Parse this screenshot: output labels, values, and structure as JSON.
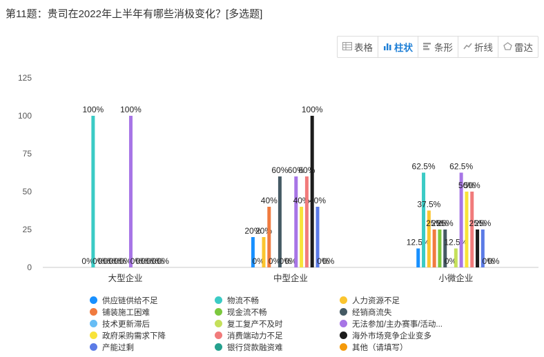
{
  "question": {
    "title": "第11题：贵司在2022年上半年有哪些消极变化？[多选题]"
  },
  "toolbar": {
    "buttons": [
      {
        "label": "表格",
        "icon": "table-icon",
        "active": false
      },
      {
        "label": "柱状",
        "icon": "bar-chart-icon",
        "active": true
      },
      {
        "label": "条形",
        "icon": "horizontal-bar-icon",
        "active": false
      },
      {
        "label": "折线",
        "icon": "line-chart-icon",
        "active": false
      },
      {
        "label": "雷达",
        "icon": "radar-icon",
        "active": false
      }
    ]
  },
  "chart_data": {
    "type": "bar",
    "title": "",
    "xlabel": "",
    "ylabel": "",
    "ylim": [
      0,
      125
    ],
    "yticks": [
      0,
      25,
      50,
      75,
      100,
      125
    ],
    "grid": false,
    "legend_position": "bottom",
    "categories": [
      "大型企业",
      "中型企业",
      "小微企业"
    ],
    "series": [
      {
        "name": "供应链供给不足",
        "color": "#1890ff",
        "values": [
          0,
          20,
          12.5
        ],
        "labels": [
          "0%",
          "20%",
          "12.5%"
        ]
      },
      {
        "name": "物流不畅",
        "color": "#3bcbc5",
        "values": [
          100,
          0,
          62.5
        ],
        "labels": [
          "100%",
          "0%",
          "62.5%"
        ]
      },
      {
        "name": "人力资源不足",
        "color": "#fbc52f",
        "values": [
          0,
          20,
          37.5
        ],
        "labels": [
          "0%",
          "20%",
          "37.5%"
        ]
      },
      {
        "name": "铺装施工困难",
        "color": "#f07b3f",
        "values": [
          0,
          40,
          25
        ],
        "labels": [
          "0%",
          "40%",
          "25%"
        ]
      },
      {
        "name": "现金流不畅",
        "color": "#7cc83e",
        "values": [
          0,
          0,
          25
        ],
        "labels": [
          "0%",
          "0%",
          "25%"
        ]
      },
      {
        "name": "经销商流失",
        "color": "#455a64",
        "values": [
          0,
          60,
          25
        ],
        "labels": [
          "0%",
          "60%",
          "25%"
        ]
      },
      {
        "name": "技术更新滞后",
        "color": "#67bdf5",
        "values": [
          0,
          0,
          0
        ],
        "labels": [
          "0%",
          "0%",
          "0%"
        ]
      },
      {
        "name": "复工复产不及时",
        "color": "#c5e05b",
        "values": [
          0,
          0,
          12.5
        ],
        "labels": [
          "0%",
          "0%",
          "12.5%"
        ]
      },
      {
        "name": "无法参加/主办赛事/活动...",
        "color": "#a775e6",
        "values": [
          100,
          60,
          62.5
        ],
        "labels": [
          "100%",
          "60%",
          "62.5%"
        ]
      },
      {
        "name": "政府采购需求下降",
        "color": "#f8e33a",
        "values": [
          0,
          40,
          50
        ],
        "labels": [
          "0%",
          "40%",
          "50%"
        ]
      },
      {
        "name": "消费端动力不足",
        "color": "#f17b7b",
        "values": [
          0,
          60,
          50
        ],
        "labels": [
          "0%",
          "60%",
          "50%"
        ]
      },
      {
        "name": "海外市场竞争企业变多",
        "color": "#1c1c1c",
        "values": [
          0,
          100,
          25
        ],
        "labels": [
          "0%",
          "100%",
          "25%"
        ]
      },
      {
        "name": "产能过剩",
        "color": "#5b7be6",
        "values": [
          0,
          40,
          25
        ],
        "labels": [
          "0%",
          "40%",
          "25%"
        ]
      },
      {
        "name": "银行贷款融资难",
        "color": "#25a18e",
        "values": [
          0,
          0,
          0
        ],
        "labels": [
          "0%",
          "0%",
          "0%"
        ]
      },
      {
        "name": "其他（请填写）",
        "color": "#f59a0a",
        "values": [
          0,
          0,
          0
        ],
        "labels": [
          "0%",
          "0%",
          "0%"
        ]
      }
    ]
  }
}
